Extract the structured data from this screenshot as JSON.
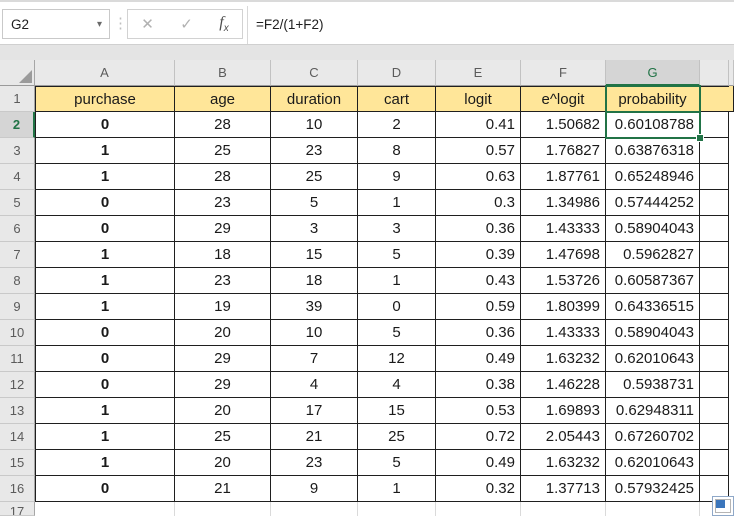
{
  "formula_bar": {
    "name_box": "G2",
    "formula": "=F2/(1+F2)"
  },
  "icons": {
    "dropdown": "▾",
    "separator": "⋮",
    "cancel": "✕",
    "confirm": "✓",
    "fx_f": "f",
    "fx_x": "x"
  },
  "grid": {
    "column_letters": [
      "A",
      "B",
      "C",
      "D",
      "E",
      "F",
      "G"
    ],
    "selected_column": "G",
    "selected_row": "2",
    "selected_cell": "G2",
    "partial_row_number": "17"
  },
  "sheet": {
    "headers": [
      "purchase",
      "age",
      "duration",
      "cart",
      "logit",
      "e^logit",
      "probability"
    ],
    "rows": [
      [
        "0",
        "28",
        "10",
        "2",
        "0.41",
        "1.50682",
        "0.60108788"
      ],
      [
        "1",
        "25",
        "23",
        "8",
        "0.57",
        "1.76827",
        "0.63876318"
      ],
      [
        "1",
        "28",
        "25",
        "9",
        "0.63",
        "1.87761",
        "0.65248946"
      ],
      [
        "0",
        "23",
        "5",
        "1",
        "0.3",
        "1.34986",
        "0.57444252"
      ],
      [
        "0",
        "29",
        "3",
        "3",
        "0.36",
        "1.43333",
        "0.58904043"
      ],
      [
        "1",
        "18",
        "15",
        "5",
        "0.39",
        "1.47698",
        "0.5962827"
      ],
      [
        "1",
        "23",
        "18",
        "1",
        "0.43",
        "1.53726",
        "0.60587367"
      ],
      [
        "1",
        "19",
        "39",
        "0",
        "0.59",
        "1.80399",
        "0.64336515"
      ],
      [
        "0",
        "20",
        "10",
        "5",
        "0.36",
        "1.43333",
        "0.58904043"
      ],
      [
        "0",
        "29",
        "7",
        "12",
        "0.49",
        "1.63232",
        "0.62010643"
      ],
      [
        "0",
        "29",
        "4",
        "4",
        "0.38",
        "1.46228",
        "0.5938731"
      ],
      [
        "1",
        "20",
        "17",
        "15",
        "0.53",
        "1.69893",
        "0.62948311"
      ],
      [
        "1",
        "25",
        "21",
        "25",
        "0.72",
        "2.05443",
        "0.67260702"
      ],
      [
        "1",
        "20",
        "23",
        "5",
        "0.49",
        "1.63232",
        "0.62010643"
      ],
      [
        "0",
        "21",
        "9",
        "1",
        "0.32",
        "1.37713",
        "0.57932425"
      ]
    ]
  },
  "colors": {
    "accent_green": "#217346",
    "header_fill": "#FFE699"
  }
}
